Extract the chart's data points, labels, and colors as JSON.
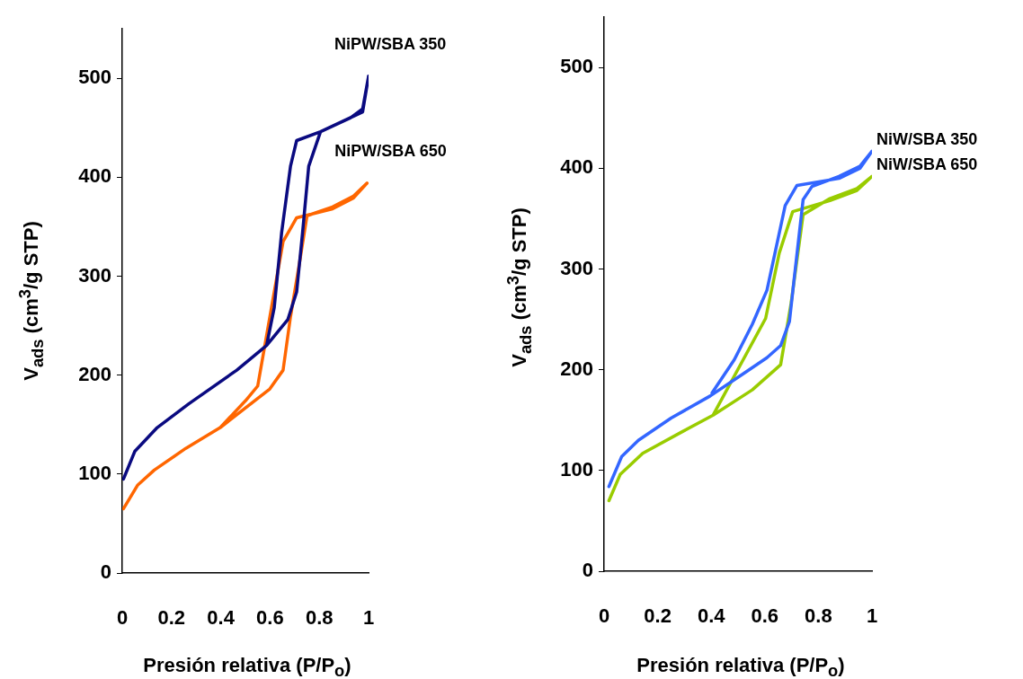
{
  "chart_data": [
    {
      "type": "line",
      "xlabel": "Presión relativa (P/P$_{o}$)",
      "ylabel": "V$_{ads}$ (cm$^{3}$/g STP)",
      "xlim": [
        0,
        1
      ],
      "xticks": [
        0,
        0.2,
        0.4,
        0.6,
        0.8,
        1
      ],
      "ylim": [
        0,
        550
      ],
      "yticks": [
        0,
        100,
        200,
        300,
        400,
        500
      ],
      "grid": false,
      "legend": false,
      "marker": "none",
      "series": [
        {
          "name": "NiPW/SBA 350",
          "color": "#0a0a80",
          "x": [
            0.005,
            0.051,
            0.142,
            0.27,
            0.465,
            0.586,
            0.672,
            0.708,
            0.732,
            0.757,
            0.805,
            0.927,
            0.976,
            1.0,
            0.976,
            0.805,
            0.708,
            0.683,
            0.647,
            0.617,
            0.586
          ],
          "values": [
            95,
            123,
            147,
            171,
            205,
            230,
            256,
            284,
            344,
            411,
            446,
            460,
            469,
            502,
            466,
            446,
            437,
            411,
            344,
            268,
            230
          ]
        },
        {
          "name": "NiPW/SBA 650",
          "color": "#ff6600",
          "x": [
            0.005,
            0.063,
            0.13,
            0.258,
            0.398,
            0.599,
            0.653,
            0.683,
            0.72,
            0.75,
            0.854,
            0.939,
            0.994,
            0.939,
            0.854,
            0.708,
            0.653,
            0.55,
            0.5,
            0.398
          ],
          "values": [
            65,
            89,
            104,
            126,
            147,
            186,
            205,
            259,
            314,
            361,
            370,
            381,
            394,
            379,
            368,
            359,
            335,
            189,
            174,
            147
          ]
        }
      ]
    },
    {
      "type": "line",
      "xlabel": "Presión relativa (P/P$_{o}$)",
      "ylabel": "V$_{ads}$ (cm$^{3}$/g STP)",
      "xlim": [
        0,
        1
      ],
      "xticks": [
        0,
        0.2,
        0.4,
        0.6,
        0.8,
        1
      ],
      "ylim": [
        0,
        550
      ],
      "yticks": [
        0,
        100,
        200,
        300,
        400,
        500
      ],
      "grid": false,
      "legend": false,
      "marker": "none",
      "series": [
        {
          "name": "NiW/SBA 350",
          "color": "#3366ff",
          "x": [
            0.018,
            0.066,
            0.128,
            0.25,
            0.396,
            0.519,
            0.608,
            0.659,
            0.692,
            0.709,
            0.743,
            0.776,
            0.877,
            0.955,
            1.0,
            0.955,
            0.877,
            0.72,
            0.676,
            0.608,
            0.553,
            0.486,
            0.403
          ],
          "values": [
            84,
            114,
            130,
            152,
            174,
            196,
            212,
            224,
            248,
            289,
            369,
            382,
            392,
            402,
            417,
            400,
            390,
            383,
            363,
            279,
            245,
            210,
            177
          ]
        },
        {
          "name": "NiW/SBA 650",
          "color": "#99cc00",
          "x": [
            0.018,
            0.06,
            0.144,
            0.295,
            0.407,
            0.553,
            0.659,
            0.698,
            0.743,
            0.843,
            0.944,
            1.0,
            0.944,
            0.843,
            0.704,
            0.654,
            0.603,
            0.407
          ],
          "values": [
            70,
            96,
            117,
            139,
            155,
            180,
            205,
            266,
            354,
            370,
            380,
            392,
            378,
            368,
            357,
            316,
            251,
            155
          ]
        }
      ]
    }
  ]
}
